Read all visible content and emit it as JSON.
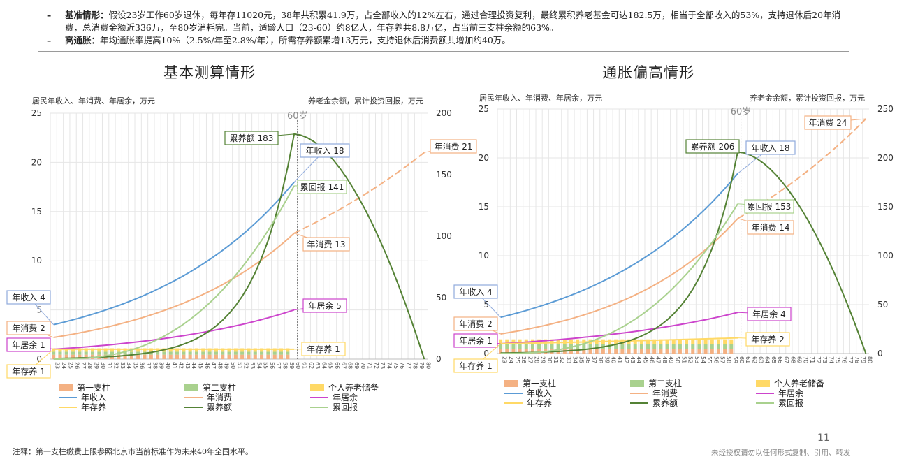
{
  "summary": {
    "items": [
      {
        "dash": "–",
        "label": "基准情形：",
        "text": "假设23岁工作60岁退休，每年存11020元，38年共积累41.9万，占全部收入的12%左右，通过合理投资复利，最终累积养老基金可达182.5万，相当于全部收入的53%，支持退休后20年消费，总消费金额近336万，至80岁消耗完。当前，适龄人口（23-60）约8亿人，年存养共8.8万亿，占当前三支柱余额的63%。"
      },
      {
        "dash": "–",
        "label": "高通胀：",
        "text": "年均通胀率提高10%（2.5%/年至2.8%/年），所需存养额累增13万元，支持退休后消费额共增加约40万。"
      }
    ]
  },
  "colors": {
    "pillar1": "#f4b183",
    "pillar2": "#a9d18e",
    "pillar3": "#ffd966",
    "income": "#5b9bd5",
    "consumption": "#f4b183",
    "surplus": "#cc44cc",
    "saving": "#ffd966",
    "pension": "#548235",
    "return": "#a9d18e",
    "calloutOrange": "#f4b183",
    "calloutBlue": "#8faadc",
    "calloutGreen": "#548235",
    "calloutMagenta": "#cc44cc",
    "calloutYellow": "#ffd966"
  },
  "charts": [
    {
      "title": "基本测算情形",
      "left_axis_title": "居民年收入、年消费、年居余，万元",
      "right_axis_title": "养老金余额，累计投资回报，万元",
      "marker_label": "60岁",
      "callouts": {
        "peak": "累养额 183",
        "income_end": "年收入 18",
        "return_end": "累回报 141",
        "cons_end": "年消费 21",
        "cons_60": "年消费 13",
        "surplus_60": "年居余 5",
        "saving_60": "年存养 1",
        "income_start": "年收入 4",
        "cons_start": "年消费 2",
        "surplus_start": "年居余 1",
        "saving_start": "年存养 1"
      }
    },
    {
      "title": "通胀偏高情形",
      "left_axis_title": "居民年收入、年消费、年居余，万元",
      "right_axis_title": "养老金余额，累计投资回报，万元",
      "marker_label": "60岁",
      "callouts": {
        "peak": "累养额 206",
        "income_end": "年收入 18",
        "return_end": "累回报 153",
        "cons_end": "年消费 24",
        "cons_60": "年消费 14",
        "surplus_60": "年居余 4",
        "saving_60": "年存养 2",
        "income_start": "年收入 4",
        "cons_start": "年消费 2",
        "surplus_start": "年居余 1",
        "saving_start": "年存养 1"
      }
    }
  ],
  "legend": {
    "pillar1": "第一支柱",
    "pillar2": "第二支柱",
    "pillar3": "个人养老储备",
    "income": "年收入",
    "consumption": "年消费",
    "surplus": "年居余",
    "saving": "年存养",
    "pension": "累养额",
    "return": "累回报"
  },
  "chart_data": [
    {
      "type": "bar+line",
      "title": "基本测算情形",
      "ylabel": "居民年收入、年消费、年居余，万元",
      "y2label": "养老金余额，累计投资回报，万元",
      "ylim": [
        0,
        25
      ],
      "y2lim": [
        0,
        200
      ],
      "yticks": [
        0,
        5,
        10,
        15,
        20,
        25
      ],
      "y2ticks": [
        0,
        50,
        100,
        150,
        200
      ],
      "x_start_age": 23,
      "x_end_age": 80,
      "retire_age": 60,
      "series": {
        "income": {
          "start": 3.5,
          "end": 18,
          "end_age": 60
        },
        "consumption": {
          "start": 2.2,
          "at60": 12.8,
          "end": 21
        },
        "surplus": {
          "start": 1.0,
          "end": 5.0,
          "end_age": 60
        },
        "saving": {
          "start": 1.0,
          "end": 1.0,
          "end_age": 60
        },
        "pension": {
          "start": 0.5,
          "peak": 183,
          "peak_age": 60,
          "end": 0,
          "end_age": 80
        },
        "return": {
          "start": 0,
          "end": 141,
          "end_age": 60
        }
      },
      "bars": {
        "pillar1": 0.45,
        "pillar2": 0.3,
        "pillar3": 0.35,
        "to_age": 60
      }
    },
    {
      "type": "bar+line",
      "title": "通胀偏高情形",
      "ylabel": "居民年收入、年消费、年居余，万元",
      "y2label": "养老金余额，累计投资回报，万元",
      "ylim": [
        0,
        25
      ],
      "y2lim": [
        0,
        250
      ],
      "yticks": [
        0,
        5,
        10,
        15,
        20,
        25
      ],
      "y2ticks": [
        0,
        50,
        100,
        150,
        200,
        250
      ],
      "x_start_age": 23,
      "x_end_age": 80,
      "retire_age": 60,
      "series": {
        "income": {
          "start": 3.7,
          "end": 18.4,
          "end_age": 60
        },
        "consumption": {
          "start": 2.0,
          "at60": 13.8,
          "end": 24
        },
        "surplus": {
          "start": 1.0,
          "end": 4.2,
          "end_age": 60
        },
        "saving": {
          "start": 1.0,
          "end": 1.6,
          "end_age": 60
        },
        "pension": {
          "start": 0.5,
          "peak": 206,
          "peak_age": 60,
          "end": 0,
          "end_age": 80
        },
        "return": {
          "start": 0,
          "end": 153,
          "end_age": 60
        }
      },
      "bars": {
        "pillar1": 0.5,
        "pillar2": 0.45,
        "pillar3": 0.5,
        "to_age": 60
      }
    }
  ],
  "footnote": "注释：第一支柱缴费上限参照北京市当前标准作为未来40年全国水平。",
  "page_number": "11",
  "rights": "未经授权请勿以任何形式复制、引用、转发"
}
